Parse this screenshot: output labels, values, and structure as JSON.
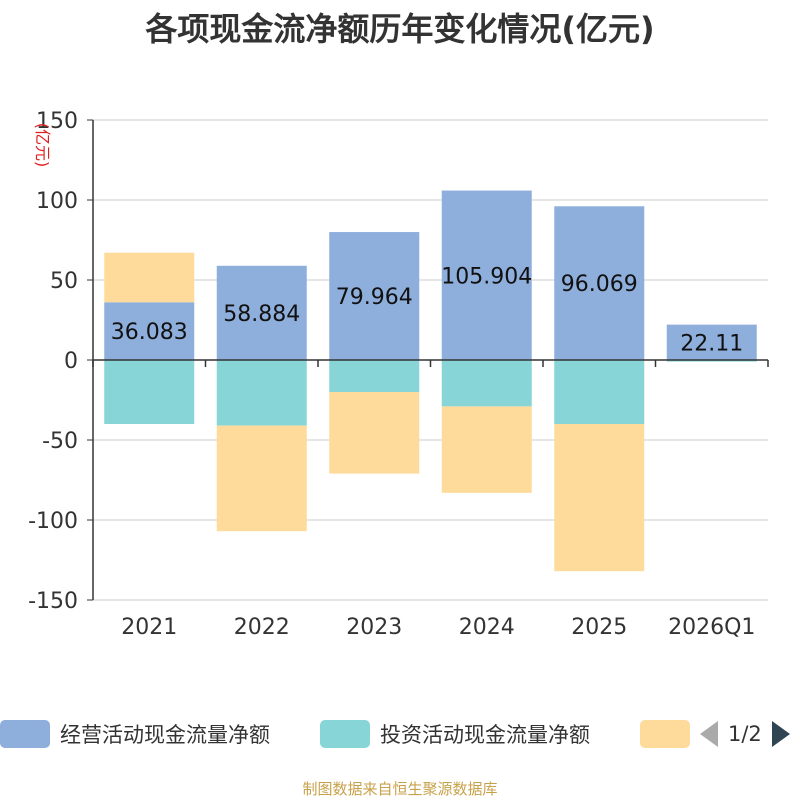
{
  "chart_data": {
    "type": "bar",
    "stacked": true,
    "title": "各项现金流净额历年变化情况(亿元)",
    "ylabel": "(亿元)",
    "ylim": [
      -150,
      150
    ],
    "yticks": [
      150,
      100,
      50,
      0,
      -50,
      -100,
      -150
    ],
    "categories": [
      "2021",
      "2022",
      "2023",
      "2024",
      "2025",
      "2026Q1"
    ],
    "series": [
      {
        "name": "经营活动现金流量净额",
        "color": "#8eaedb",
        "values": [
          36.083,
          58.884,
          79.964,
          105.904,
          96.069,
          22.11
        ],
        "data_labels": [
          "36.083",
          "58.884",
          "79.964",
          "105.904",
          "96.069",
          "22.11"
        ]
      },
      {
        "name": "投资活动现金流量净额",
        "color": "#87d5d6",
        "values": [
          -40,
          -41,
          -20,
          -29,
          -40,
          -1
        ]
      },
      {
        "name": "",
        "color": "#fedb9b",
        "values": [
          31,
          -66,
          -51,
          -54,
          -92,
          0
        ]
      }
    ]
  },
  "legend": {
    "items": [
      {
        "label": "经营活动现金流量净额",
        "color": "#8eaedb"
      },
      {
        "label": "投资活动现金流量净额",
        "color": "#87d5d6"
      },
      {
        "label": "",
        "color": "#fedb9b"
      }
    ],
    "page": "1/2"
  },
  "source": "制图数据来自恒生聚源数据库"
}
